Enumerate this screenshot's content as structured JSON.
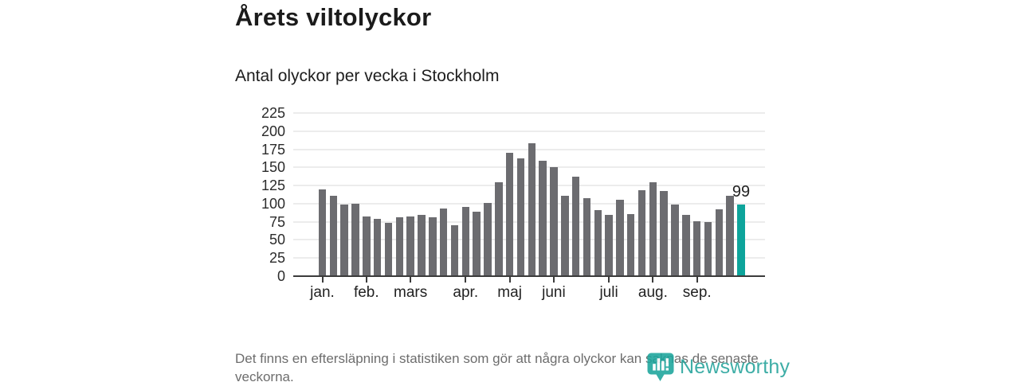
{
  "title": "Årets viltolyckor",
  "subtitle": "Antal olyckor per vecka i Stockholm",
  "footnote": "Det finns en eftersläpning i statistiken som gör att några olyckor kan saknas de senaste veckorna.",
  "logo": {
    "text": "Newsworthy",
    "icon": "newsworthy-bubble-barchart-icon"
  },
  "colors": {
    "bar": "#6c6c70",
    "highlight": "#0da49b",
    "axis": "#3b3b3b",
    "grid": "#ececec",
    "logo": "#23a29a",
    "footnote_text": "#6d6d6d",
    "title_text": "#1b1b1b"
  },
  "chart_data": {
    "type": "bar",
    "title": "Årets viltolyckor",
    "subtitle": "Antal olyckor per vecka i Stockholm",
    "x_unit": "vecka (week of year)",
    "weeks": [
      1,
      2,
      3,
      4,
      5,
      6,
      7,
      8,
      9,
      10,
      11,
      12,
      13,
      14,
      15,
      16,
      17,
      18,
      19,
      20,
      21,
      22,
      23,
      24,
      25,
      26,
      27,
      28,
      29,
      30,
      31,
      32,
      33,
      34,
      35,
      36,
      37,
      38,
      39
    ],
    "values": [
      120,
      111,
      99,
      100,
      82,
      79,
      74,
      81,
      82,
      85,
      81,
      93,
      70,
      96,
      89,
      101,
      130,
      170,
      163,
      183,
      159,
      150,
      111,
      137,
      108,
      91,
      85,
      105,
      86,
      119,
      130,
      118,
      99,
      85,
      76,
      75,
      92,
      111,
      99
    ],
    "highlight_index": 38,
    "highlight_label": "99",
    "y_ticks": [
      0,
      25,
      50,
      75,
      100,
      125,
      150,
      175,
      200,
      225
    ],
    "ylim": [
      0,
      225
    ],
    "grid": "horizontal",
    "legend": "none",
    "months": [
      {
        "label": "jan.",
        "week": 1
      },
      {
        "label": "feb.",
        "week": 5
      },
      {
        "label": "mars",
        "week": 9
      },
      {
        "label": "apr.",
        "week": 14
      },
      {
        "label": "maj",
        "week": 18
      },
      {
        "label": "juni",
        "week": 22
      },
      {
        "label": "juli",
        "week": 27
      },
      {
        "label": "aug.",
        "week": 31
      },
      {
        "label": "sep.",
        "week": 35
      }
    ]
  }
}
